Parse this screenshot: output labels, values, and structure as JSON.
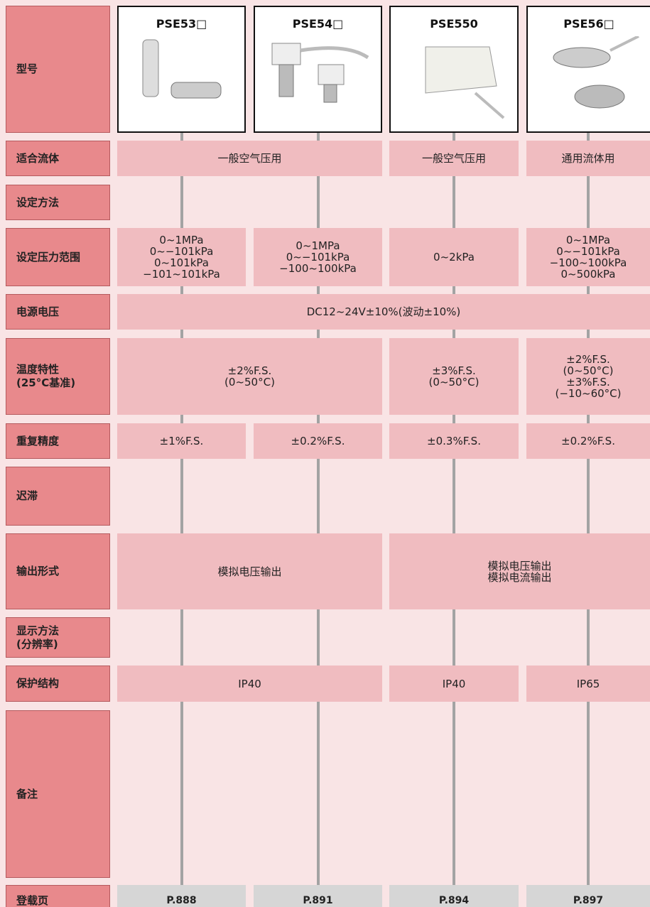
{
  "models": [
    "PSE53□",
    "PSE54□",
    "PSE550",
    "PSE56□"
  ],
  "rows": [
    {
      "header": [
        "型号"
      ],
      "cells": []
    },
    {
      "header": [
        "适合流体"
      ],
      "cells": [
        [
          "一般空气压用"
        ],
        null,
        [
          "一般空气压用"
        ],
        [
          "通用流体用"
        ]
      ]
    },
    {
      "header": [
        "设定方法"
      ],
      "cells": []
    },
    {
      "header": [
        "设定压力范围"
      ],
      "cells": [
        [
          "0~1MPa",
          "0~−101kPa",
          "0~101kPa",
          "−101~101kPa"
        ],
        [
          "0~1MPa",
          "0~−101kPa",
          "−100~100kPa"
        ],
        [
          "0~2kPa"
        ],
        [
          "0~1MPa",
          "0~−101kPa",
          "−100~100kPa",
          "0~500kPa"
        ]
      ]
    },
    {
      "header": [
        "电源电压"
      ],
      "cells": [
        [
          "DC12~24V±10%(波动±10%)"
        ],
        null,
        null,
        null
      ]
    },
    {
      "header": [
        "温度特性",
        "(25°C基准)"
      ],
      "cells": [
        [
          "±2%F.S.",
          "(0~50°C)"
        ],
        null,
        [
          "±3%F.S.",
          "(0~50°C)"
        ],
        [
          "±2%F.S.",
          "(0~50°C)",
          "±3%F.S.",
          "(−10~60°C)"
        ]
      ]
    },
    {
      "header": [
        "重复精度"
      ],
      "cells": [
        [
          "±1%F.S."
        ],
        [
          "±0.2%F.S."
        ],
        [
          "±0.3%F.S."
        ],
        [
          "±0.2%F.S."
        ]
      ]
    },
    {
      "header": [
        "迟滞"
      ],
      "cells": []
    },
    {
      "header": [
        "输出形式"
      ],
      "cells": [
        [
          "模拟电压输出"
        ],
        null,
        [
          "模拟电压输出",
          "模拟电流输出"
        ],
        null
      ]
    },
    {
      "header": [
        "显示方法",
        "(分辨率)"
      ],
      "cells": []
    },
    {
      "header": [
        "保护结构"
      ],
      "cells": [
        [
          "IP40"
        ],
        null,
        [
          "IP40"
        ],
        [
          "IP65"
        ]
      ]
    },
    {
      "header": [
        "备注"
      ],
      "cells": []
    },
    {
      "header": [
        "登载页"
      ],
      "cells": [
        [
          "P.888"
        ],
        [
          "P.891"
        ],
        [
          "P.894"
        ],
        [
          "P.897"
        ]
      ]
    }
  ]
}
